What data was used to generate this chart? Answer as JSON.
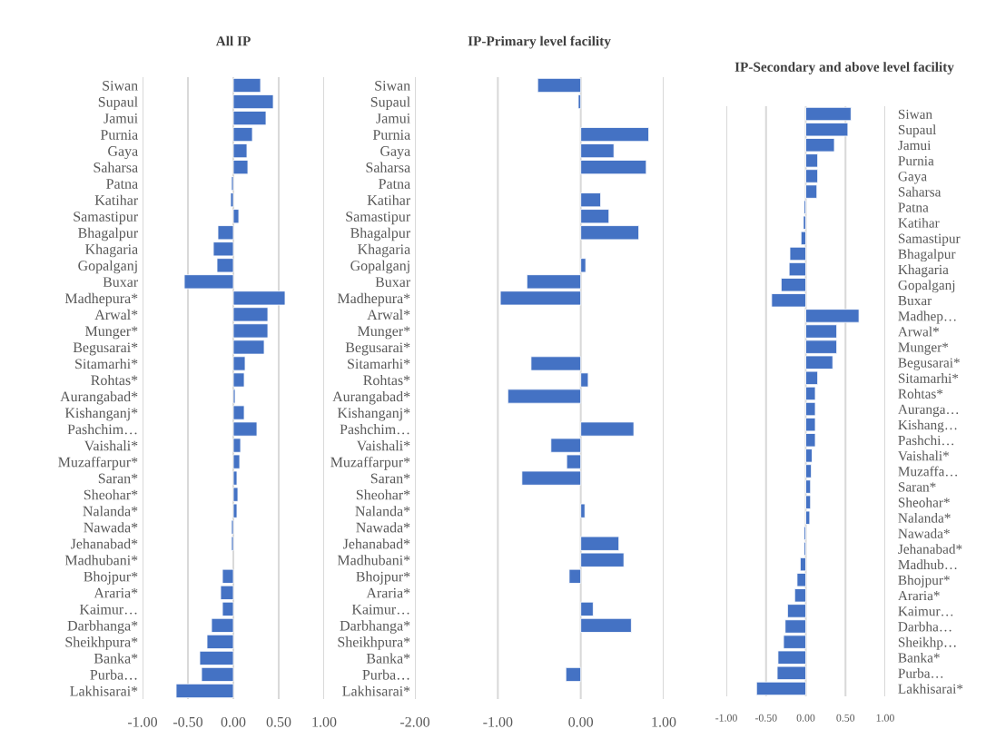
{
  "chart_data": [
    {
      "type": "bar",
      "orientation": "horizontal",
      "title": "All IP",
      "color": "#4472c4",
      "grid": "x",
      "categories": [
        "Siwan",
        "Supaul",
        "Jamui",
        "Purnia",
        "Gaya",
        "Saharsa",
        "Patna",
        "Katihar",
        "Samastipur",
        "Bhagalpur",
        "Khagaria",
        "Gopalganj",
        "Buxar",
        "Madhepura*",
        "Arwal*",
        "Munger*",
        "Begusarai*",
        "Sitamarhi*",
        "Rohtas*",
        "Aurangabad*",
        "Kishanganj*",
        "Pashchim…",
        "Vaishali*",
        "Muzaffarpur*",
        "Saran*",
        "Sheohar*",
        "Nalanda*",
        "Nawada*",
        "Jehanabad*",
        "Madhubani*",
        "Bhojpur*",
        "Araria*",
        "Kaimur…",
        "Darbhanga*",
        "Sheikhpura*",
        "Banka*",
        "Purba…",
        "Lakhisarai*"
      ],
      "values": [
        0.3,
        0.44,
        0.36,
        0.21,
        0.15,
        0.16,
        -0.02,
        -0.03,
        0.06,
        -0.17,
        -0.22,
        -0.18,
        -0.54,
        0.57,
        0.38,
        0.38,
        0.34,
        0.13,
        0.12,
        0.02,
        0.12,
        0.26,
        0.08,
        0.07,
        0.04,
        0.05,
        0.04,
        -0.02,
        -0.02,
        null,
        -0.12,
        -0.14,
        -0.12,
        -0.24,
        -0.29,
        -0.37,
        -0.35,
        -0.63
      ],
      "xlim": [
        -1,
        1
      ],
      "xticks": [
        {
          "value": -1,
          "label": "-1.00"
        },
        {
          "value": -0.5,
          "label": "-0.50"
        },
        {
          "value": 0,
          "label": "0.00"
        },
        {
          "value": 0.5,
          "label": "0.50"
        },
        {
          "value": 1,
          "label": "1.00"
        }
      ]
    },
    {
      "type": "bar",
      "orientation": "horizontal",
      "title": "IP-Primary level facility",
      "color": "#4472c4",
      "grid": "x",
      "categories": [
        "Siwan",
        "Supaul",
        "Jamui",
        "Purnia",
        "Gaya",
        "Saharsa",
        "Patna",
        "Katihar",
        "Samastipur",
        "Bhagalpur",
        "Khagaria",
        "Gopalganj",
        "Buxar",
        "Madhepura*",
        "Arwal*",
        "Munger*",
        "Begusarai*",
        "Sitamarhi*",
        "Rohtas*",
        "Aurangabad*",
        "Kishanganj*",
        "Pashchim…",
        "Vaishali*",
        "Muzaffarpur*",
        "Saran*",
        "Sheohar*",
        "Nalanda*",
        "Nawada*",
        "Jehanabad*",
        "Madhubani*",
        "Bhojpur*",
        "Araria*",
        "Kaimur…",
        "Darbhanga*",
        "Sheikhpura*",
        "Banka*",
        "Purba…",
        "Lakhisarai*"
      ],
      "values": [
        -0.52,
        -0.03,
        null,
        0.82,
        0.4,
        0.79,
        null,
        0.24,
        0.34,
        0.7,
        null,
        0.06,
        -0.65,
        -0.97,
        null,
        null,
        null,
        -0.6,
        0.09,
        -0.88,
        null,
        0.64,
        -0.36,
        -0.17,
        -0.71,
        null,
        0.05,
        null,
        0.46,
        0.52,
        -0.14,
        null,
        0.15,
        0.61,
        null,
        null,
        -0.18,
        null
      ],
      "xlim": [
        -2,
        1
      ],
      "xticks": [
        {
          "value": -2,
          "label": "-2.00"
        },
        {
          "value": -1,
          "label": "-1.00"
        },
        {
          "value": 0,
          "label": "0.00"
        },
        {
          "value": 1,
          "label": "1.00"
        }
      ]
    },
    {
      "type": "bar",
      "orientation": "horizontal",
      "title": "IP-Secondary and above level facility",
      "color": "#4472c4",
      "grid": "x",
      "categories": [
        "Siwan",
        "Supaul",
        "Jamui",
        "Purnia",
        "Gaya",
        "Saharsa",
        "Patna",
        "Katihar",
        "Samastipur",
        "Bhagalpur",
        "Khagaria",
        "Gopalganj",
        "Buxar",
        "Madhep…",
        "Arwal*",
        "Munger*",
        "Begusarai*",
        "Sitamarhi*",
        "Rohtas*",
        "Auranga…",
        "Kishang…",
        "Pashchi…",
        "Vaishali*",
        "Muzaffa…",
        "Saran*",
        "Sheohar*",
        "Nalanda*",
        "Nawada*",
        "Jehanabad*",
        "Madhub…",
        "Bhojpur*",
        "Araria*",
        "Kaimur…",
        "Darbha…",
        "Sheikhp…",
        "Banka*",
        "Purba…",
        "Lakhisarai*"
      ],
      "values": [
        0.57,
        0.53,
        0.36,
        0.15,
        0.15,
        0.14,
        -0.02,
        -0.03,
        -0.06,
        -0.2,
        -0.21,
        -0.31,
        -0.43,
        0.67,
        0.39,
        0.39,
        0.34,
        0.15,
        0.12,
        0.12,
        0.12,
        0.12,
        0.08,
        0.07,
        0.06,
        0.06,
        0.05,
        -0.02,
        -0.02,
        -0.07,
        -0.11,
        -0.14,
        -0.23,
        -0.26,
        -0.28,
        -0.35,
        -0.36,
        -0.62
      ],
      "xlim": [
        -1,
        1
      ],
      "xticks": [
        {
          "value": -1,
          "label": "-1.00"
        },
        {
          "value": -0.5,
          "label": "-0.50"
        },
        {
          "value": 0,
          "label": "0.00"
        },
        {
          "value": 0.5,
          "label": "0.50"
        },
        {
          "value": 1,
          "label": "1.00"
        }
      ]
    }
  ]
}
